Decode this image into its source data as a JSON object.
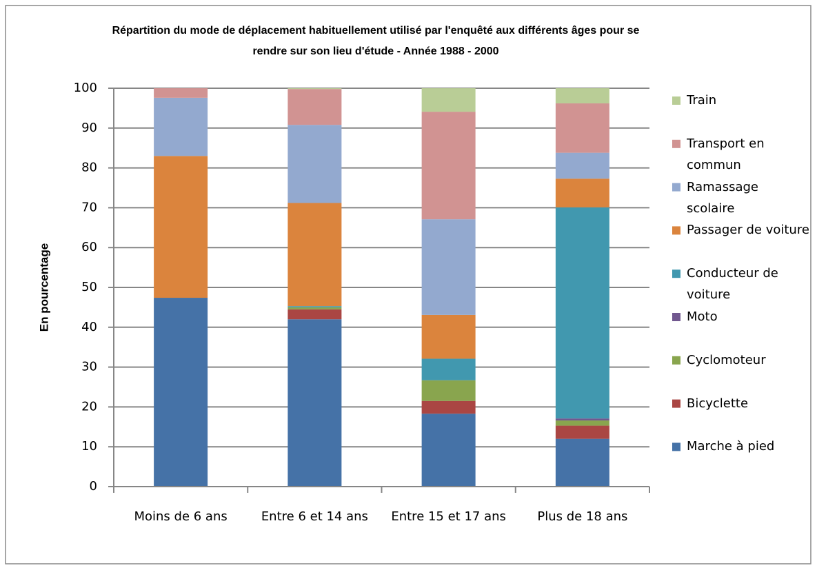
{
  "chart_data": {
    "type": "stacked_bar",
    "title": "Répartition du mode de déplacement habituellement utilisé par l'enquêté aux différents âges pour se rendre sur son lieu d'étude - Année 1988 - 2000",
    "y_label": "En pourcentage",
    "categories": [
      "Moins de 6 ans",
      "Entre 6 et 14 ans",
      "Entre 15 et 17 ans",
      "Plus de 18 ans"
    ],
    "series": [
      {
        "name": "Marche à pied",
        "color": "#4572a7",
        "values": [
          47.4,
          42,
          18.3,
          12
        ]
      },
      {
        "name": "Bicyclette",
        "color": "#aa4643",
        "values": [
          0,
          2.5,
          3.2,
          3.3
        ]
      },
      {
        "name": "Cyclomoteur",
        "color": "#89a54e",
        "values": [
          0,
          0.5,
          5.2,
          1.3
        ]
      },
      {
        "name": "Moto",
        "color": "#71588f",
        "values": [
          0,
          0,
          0,
          0.5
        ]
      },
      {
        "name": "Conducteur de voiture",
        "color": "#4198af",
        "values": [
          0,
          0.3,
          5.4,
          53
        ]
      },
      {
        "name": "Passager de voiture",
        "color": "#db843d",
        "values": [
          35.6,
          25.9,
          11,
          7.2
        ]
      },
      {
        "name": "Ramassage scolaire",
        "color": "#93a9cf",
        "values": [
          14.6,
          19.6,
          24,
          6.5
        ]
      },
      {
        "name": "Transport en commun",
        "color": "#d19392",
        "values": [
          2.4,
          9,
          27,
          12.4
        ]
      },
      {
        "name": "Train",
        "color": "#b9cd96",
        "values": [
          0,
          0.2,
          5.9,
          3.8
        ]
      }
    ],
    "ylim": [
      0,
      100
    ],
    "yticks": [
      0,
      10,
      20,
      30,
      40,
      50,
      60,
      70,
      80,
      90,
      100
    ],
    "grid": true,
    "legend": "right"
  }
}
